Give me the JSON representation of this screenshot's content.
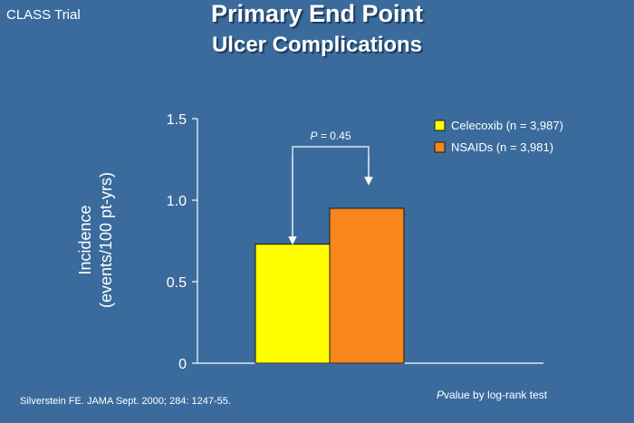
{
  "trial_label": "CLASS Trial",
  "title": "Primary End Point",
  "subtitle": "Ulcer Complications",
  "footnote_source": "Silverstein FE. JAMA Sept. 2000; 284: 1247-55.",
  "footnote_p_italic": "P",
  "footnote_p_rest": "value by log-rank test",
  "chart_data": {
    "type": "bar",
    "title": "",
    "ylabel_line1": "Incidence",
    "ylabel_line2": "(events/100 pt-yrs)",
    "xlabel": "",
    "ylim": [
      0,
      1.5
    ],
    "yticks": [
      "0",
      "0.5",
      "1.0",
      "1.5"
    ],
    "ytick_values": [
      0,
      0.5,
      1.0,
      1.5
    ],
    "grid": false,
    "legend_position": "top-right",
    "series": [
      {
        "name": "Celecoxib (n = 3,987)",
        "value": 0.73,
        "color": "#ffff00"
      },
      {
        "name": "NSAIDs (n = 3,981)",
        "value": 0.95,
        "color": "#f7861b"
      }
    ],
    "annotation_italic": "P",
    "annotation_rest": " = 0.45"
  }
}
